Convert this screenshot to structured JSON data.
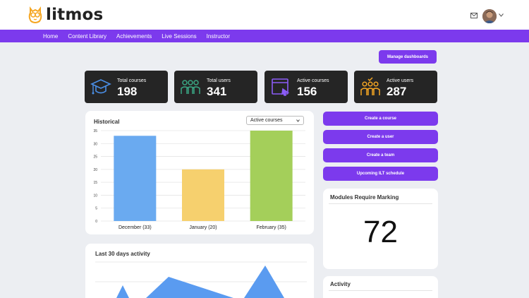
{
  "brand": {
    "name": "litmos",
    "logo_color": "#f5a623"
  },
  "header": {
    "mail_icon": "mail-icon",
    "avatar": "user-avatar"
  },
  "nav": {
    "items": [
      "Home",
      "Content Library",
      "Achievements",
      "Live Sessions",
      "Instructor"
    ],
    "color": "#7c3aed"
  },
  "toolbar": {
    "manage_label": "Manage dashboards"
  },
  "stats": [
    {
      "label": "Total courses",
      "value": "198",
      "icon": "graduation-cap-icon",
      "color": "#4a8fe7"
    },
    {
      "label": "Total users",
      "value": "341",
      "icon": "users-icon",
      "color": "#3aa683"
    },
    {
      "label": "Active courses",
      "value": "156",
      "icon": "course-window-icon",
      "color": "#8b5cf6"
    },
    {
      "label": "Active users",
      "value": "287",
      "icon": "active-users-icon",
      "color": "#f5a623"
    }
  ],
  "historical": {
    "title": "Historical",
    "select_value": "Active courses"
  },
  "chart_data": {
    "type": "bar",
    "categories": [
      "December (33)",
      "January (20)",
      "February (35)"
    ],
    "values": [
      33,
      20,
      35
    ],
    "colors": [
      "#6aaaf0",
      "#f6d06e",
      "#a4cf5a"
    ],
    "ylim": [
      0,
      35
    ],
    "yticks": [
      0,
      5,
      10,
      15,
      20,
      25,
      30,
      35
    ],
    "grid": true
  },
  "actions": [
    "Create a course",
    "Create a user",
    "Create a team",
    "Upcoming ILT schedule"
  ],
  "marking": {
    "title": "Modules Require Marking",
    "value": "72"
  },
  "activity30": {
    "title": "Last 30 days activity",
    "fill": "#5a9bf0"
  },
  "activity": {
    "title": "Activity"
  }
}
